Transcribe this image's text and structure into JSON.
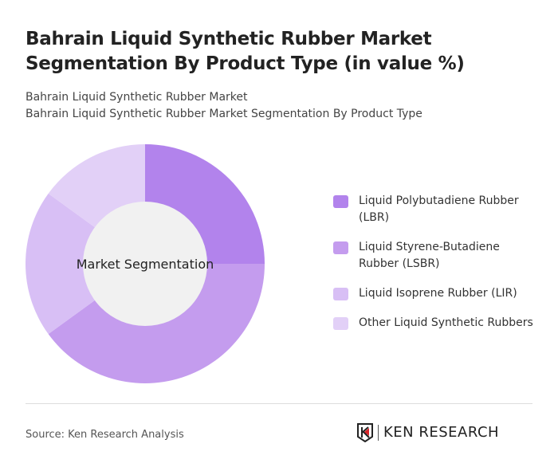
{
  "title": "Bahrain Liquid Synthetic Rubber Market Segmentation By Product Type (in value %)",
  "subtitle1": "Bahrain Liquid Synthetic Rubber Market",
  "subtitle2": "Bahrain Liquid Synthetic Rubber Market Segmentation By Product Type",
  "source": "Source: Ken Research Analysis",
  "logo_text": "KEN RESEARCH",
  "chart_data": {
    "type": "pie",
    "donut": true,
    "center_label": "Market Segmentation",
    "legend_position": "right",
    "categories": [
      "Liquid Polybutadiene Rubber (LBR)",
      "Liquid Styrene-Butadiene Rubber (LSBR)",
      "Liquid Isoprene Rubber (LIR)",
      "Other Liquid Synthetic Rubbers"
    ],
    "values": [
      25,
      40,
      20,
      15
    ],
    "colors": [
      "#b283ec",
      "#c49cee",
      "#d8bff5",
      "#e2d0f7"
    ]
  }
}
